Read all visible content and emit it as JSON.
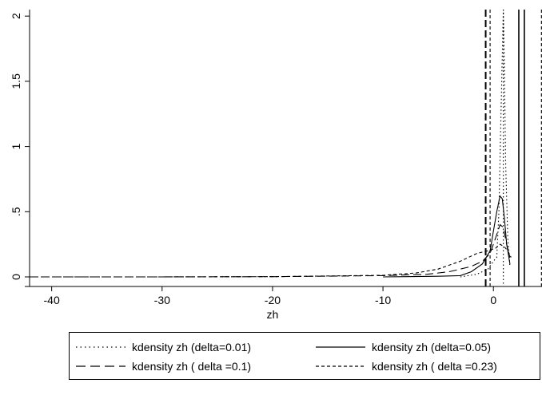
{
  "chart_data": {
    "type": "line",
    "xlabel": "zh",
    "ylabel": "",
    "xlim": [
      -42,
      4.4
    ],
    "ylim": [
      0,
      2.05
    ],
    "xticks": [
      -40,
      -30,
      -20,
      -10,
      0
    ],
    "xtick_labels": [
      "-40",
      "-30",
      "-20",
      "-10",
      "0"
    ],
    "yticks": [
      0,
      0.5,
      1,
      1.5,
      2
    ],
    "ytick_labels": [
      "0",
      ".5",
      "1",
      "1.5",
      "2"
    ],
    "grid": false,
    "legend_position": "bottom",
    "series": [
      {
        "name": "kdensity zh (delta=0.01)",
        "style": "dotted",
        "x": [
          -3,
          -1.5,
          -0.5,
          0,
          0.3,
          0.5,
          0.7,
          0.9,
          1.0,
          1.1,
          1.3,
          1.5
        ],
        "y": [
          0.0,
          0.02,
          0.06,
          0.12,
          0.15,
          0.5,
          1.3,
          2.05,
          1.6,
          0.9,
          0.3,
          0.08
        ]
      },
      {
        "name": "kdensity zh (delta=0.05)",
        "style": "solid",
        "x": [
          -10,
          -5,
          -3,
          -2,
          -1,
          -0.3,
          0,
          0.3,
          0.6,
          0.8,
          1.0,
          1.2,
          1.5
        ],
        "y": [
          0.0,
          0.005,
          0.01,
          0.04,
          0.1,
          0.2,
          0.35,
          0.5,
          0.62,
          0.6,
          0.45,
          0.25,
          0.1
        ]
      },
      {
        "name": "kdensity zh ( delta =0.1)",
        "style": "dashed",
        "x": [
          -42,
          -30,
          -20,
          -10,
          -6,
          -4,
          -2,
          -1,
          -0.3,
          0.2,
          0.6,
          0.9,
          1.2,
          1.5
        ],
        "y": [
          0.0,
          0.0,
          0.002,
          0.01,
          0.02,
          0.04,
          0.08,
          0.12,
          0.18,
          0.3,
          0.4,
          0.38,
          0.25,
          0.15
        ]
      },
      {
        "name": "kdensity zh ( delta =0.23)",
        "style": "shortdash",
        "x": [
          -42,
          -30,
          -20,
          -10,
          -7,
          -5,
          -3,
          -1.5,
          -0.5,
          0.2,
          0.6,
          1.0,
          1.3,
          1.6
        ],
        "y": [
          0.0,
          0.0,
          0.002,
          0.012,
          0.03,
          0.06,
          0.12,
          0.18,
          0.2,
          0.22,
          0.25,
          0.23,
          0.2,
          0.15
        ]
      }
    ],
    "vertical_lines": [
      {
        "x": -0.7,
        "style": "dashed-thick"
      },
      {
        "x": -0.3,
        "style": "shortdash"
      },
      {
        "x": 0.9,
        "style": "dotted"
      },
      {
        "x": 2.3,
        "style": "solid"
      },
      {
        "x": 2.8,
        "style": "solid"
      },
      {
        "x": 4.35,
        "style": "shortdash"
      }
    ],
    "colors": {
      "line": "#000000",
      "background": "#ffffff"
    }
  }
}
